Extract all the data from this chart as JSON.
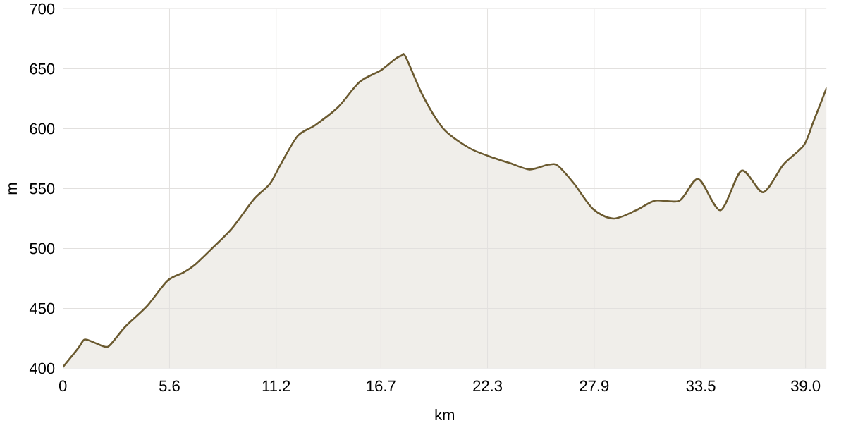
{
  "chart_data": {
    "type": "area",
    "xlabel": "km",
    "ylabel": "m",
    "x": [
      0,
      0.81,
      1.13,
      1.58,
      2.22,
      2.51,
      3.29,
      4.42,
      5.48,
      6.33,
      6.9,
      7.89,
      8.89,
      10.02,
      10.87,
      11.43,
      12.33,
      13.25,
      14.45,
      15.58,
      16.72,
      17.43,
      17.78,
      18.0,
      18.92,
      19.98,
      21.33,
      22.39,
      23.52,
      24.51,
      25.5,
      26.0,
      26.85,
      27.84,
      28.91,
      30.11,
      31.1,
      32.38,
      33.37,
      34.53,
      35.64,
      36.77,
      37.83,
      38.9,
      39.39,
      40.1
    ],
    "values": [
      401,
      417,
      424,
      422,
      418,
      420,
      435,
      452,
      473,
      480,
      486,
      501,
      517,
      541,
      554,
      570,
      594,
      603,
      618,
      639,
      649,
      658,
      661,
      660,
      627,
      600,
      584,
      577,
      571,
      566,
      570,
      569,
      554,
      533,
      525,
      532,
      540,
      540,
      558,
      532,
      565,
      547,
      570,
      586,
      605,
      634
    ],
    "color": "#6b5a30",
    "xlim": [
      0,
      40.1
    ],
    "xticks": [
      0,
      5.6,
      11.2,
      16.7,
      22.3,
      27.9,
      33.5,
      {
        "value": 39,
        "label": "39.0"
      }
    ],
    "ylim": [
      400,
      700
    ],
    "yticks": [
      400,
      450,
      500,
      550,
      600,
      650,
      700
    ],
    "grid": true
  }
}
